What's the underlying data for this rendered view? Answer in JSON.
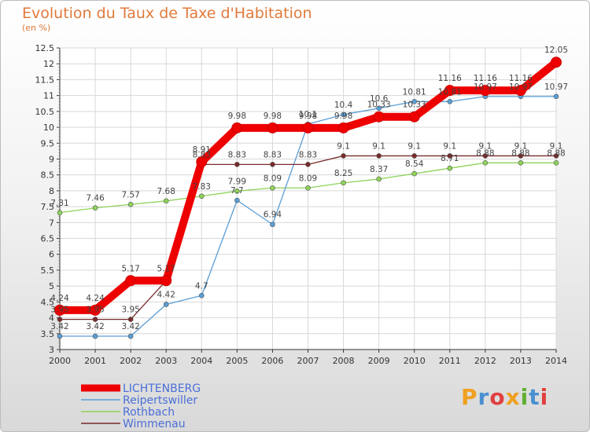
{
  "title": "Evolution du Taux de Taxe d'Habitation",
  "subtitle": "(en %)",
  "logo": "Proxiti",
  "chart_data": {
    "type": "line",
    "x": [
      "2000",
      "2001",
      "2002",
      "2003",
      "2004",
      "2005",
      "2006",
      "2007",
      "2008",
      "2009",
      "2010",
      "2011",
      "2012",
      "2013",
      "2014"
    ],
    "yticks": [
      "3",
      "3.5",
      "4",
      "4.5",
      "5",
      "5.5",
      "6",
      "6.5",
      "7",
      "7.5",
      "8",
      "8.5",
      "9",
      "9.5",
      "10",
      "10.5",
      "11",
      "11.5",
      "12",
      "12.5"
    ],
    "ylim": [
      3,
      12.5
    ],
    "grid": true,
    "legend_position": "bottom-left",
    "series": [
      {
        "name": "LICHTENBERG",
        "color": "#ee0000",
        "values": [
          4.24,
          4.24,
          5.17,
          5.17,
          8.91,
          9.98,
          9.98,
          9.98,
          9.98,
          10.33,
          10.33,
          11.16,
          11.16,
          11.16,
          12.05
        ],
        "labels": [
          "4.24",
          "4.24",
          "5.17",
          "5.17",
          "8.91",
          "9.98",
          "9.98",
          "9.98",
          "9.98",
          "10.33",
          "10.33",
          "11.16",
          "11.16",
          "11.16",
          "12.05"
        ]
      },
      {
        "name": "Reipertswiller",
        "color": "#5a9ed6",
        "values": [
          3.42,
          3.42,
          3.42,
          4.42,
          4.7,
          7.7,
          6.94,
          10.1,
          10.4,
          10.6,
          10.81,
          10.81,
          10.97,
          10.97,
          10.97
        ],
        "labels": [
          "3.42",
          "3.42",
          "3.42",
          "4.42",
          "4.7",
          "7.7",
          "6.94",
          "10.1",
          "10.4",
          "10.6",
          "10.81",
          "10.81",
          "10.97",
          "10.97",
          "10.97"
        ]
      },
      {
        "name": "Rothbach",
        "color": "#8fd35a",
        "values": [
          7.31,
          7.46,
          7.57,
          7.68,
          7.83,
          7.99,
          8.09,
          8.09,
          8.25,
          8.37,
          8.54,
          8.71,
          8.88,
          8.88,
          8.88
        ],
        "labels": [
          "7.31",
          "7.46",
          "7.57",
          "7.68",
          "7.83",
          "7.99",
          "8.09",
          "8.09",
          "8.25",
          "8.37",
          "8.54",
          "8.71",
          "8.88",
          "8.88",
          "8.88"
        ]
      },
      {
        "name": "Wimmenau",
        "color": "#7a2a2a",
        "values": [
          3.95,
          3.95,
          3.95,
          5.17,
          8.83,
          8.83,
          8.83,
          8.83,
          9.1,
          9.1,
          9.1,
          9.1,
          9.1,
          9.1,
          9.1
        ],
        "labels": [
          "3.95",
          "3.95",
          "3.95",
          "",
          "8.83",
          "8.83",
          "8.83",
          "8.83",
          "9.1",
          "9.1",
          "9.1",
          "9.1",
          "9.1",
          "9.1",
          "9.1"
        ]
      }
    ]
  }
}
